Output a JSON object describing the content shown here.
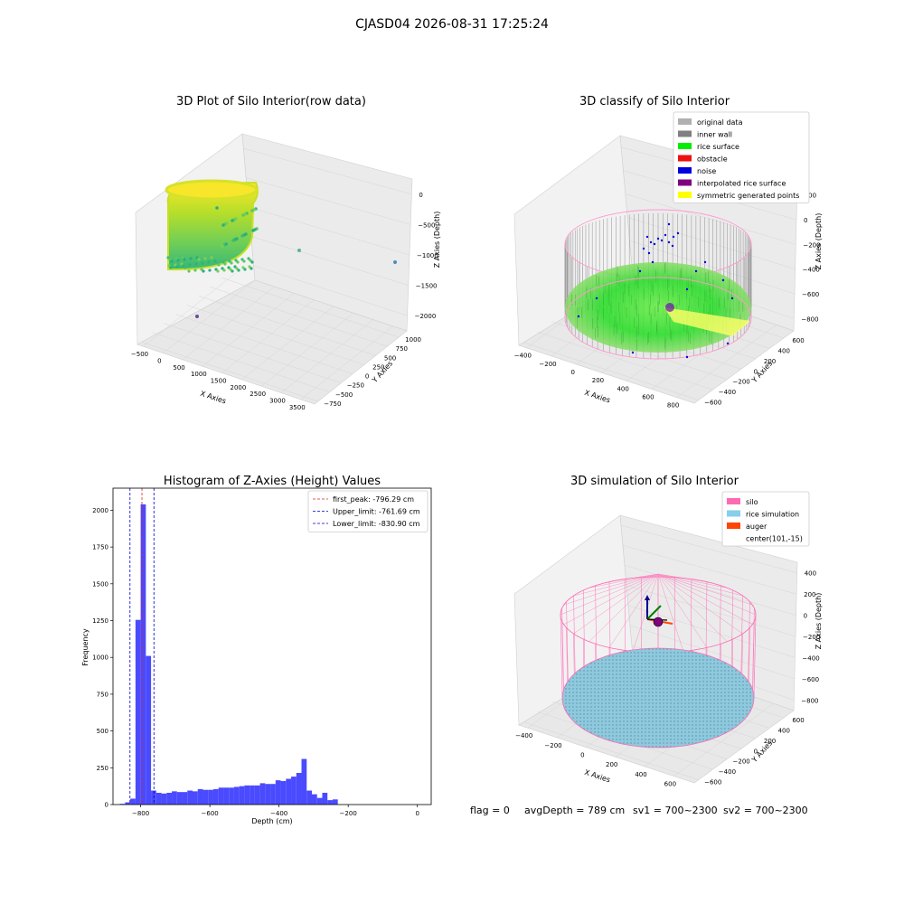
{
  "figure": {
    "suptitle": "CJASD04 2026-08-31 17:25:24",
    "footer": {
      "flag": "flag = 0",
      "avg": "avgDepth = 789 cm",
      "sv1": "sv1 = 700~2300",
      "sv2": "sv2 = 700~2300"
    }
  },
  "chart_data": [
    {
      "type": "scatter",
      "title": "3D Plot of Silo Interior(row data)",
      "xlabel": "X Axies",
      "ylabel": "Y Axies",
      "zlabel": "Z Axies (Depth)",
      "x_ticks": [
        "−500",
        "0",
        "500",
        "1000",
        "1500",
        "2000",
        "2500",
        "3000",
        "3500"
      ],
      "y_ticks": [
        "−750",
        "−500",
        "−250",
        "0",
        "250",
        "500",
        "750",
        "1000"
      ],
      "z_ticks": [
        "0",
        "−500",
        "−1000",
        "−1500",
        "−2000"
      ],
      "colormap": "viridis",
      "outliers": [
        {
          "x": 1550,
          "y": 380,
          "z": -1050
        },
        {
          "x": 3300,
          "y": 880,
          "z": -1350
        },
        {
          "x": 120,
          "y": -620,
          "z": -1900
        }
      ]
    },
    {
      "type": "scatter",
      "title": "3D classify of Silo Interior",
      "xlabel": "X Axies",
      "ylabel": "Y Axies",
      "zlabel": "Z Axies (Depth)",
      "x_ticks": [
        "−400",
        "−200",
        "0",
        "200",
        "400",
        "600",
        "800"
      ],
      "y_ticks": [
        "−600",
        "−400",
        "−200",
        "0",
        "200",
        "400",
        "600"
      ],
      "z_ticks": [
        "200",
        "0",
        "−200",
        "−400",
        "−600",
        "−800"
      ],
      "legend_position": "top-right",
      "legend": [
        {
          "label": "original data",
          "color": "#b0b0b0"
        },
        {
          "label": "inner wall",
          "color": "#808080"
        },
        {
          "label": "rice surface",
          "color": "#00ee00"
        },
        {
          "label": "obstacle",
          "color": "#ee1111"
        },
        {
          "label": "noise",
          "color": "#0000dd"
        },
        {
          "label": "interpolated rice surface",
          "color": "#800080"
        },
        {
          "label": "symmetric generated points",
          "color": "#ffff00"
        }
      ]
    },
    {
      "type": "bar",
      "title": "Histogram of Z-Axies (Height) Values",
      "xlabel": "Depth (cm)",
      "ylabel": "Frequency",
      "xlim": [
        -880,
        40
      ],
      "ylim": [
        0,
        2150
      ],
      "x_ticks": [
        -800,
        -600,
        -400,
        -200,
        0
      ],
      "x_tick_labels": [
        "−800",
        "−600",
        "−400",
        "−200",
        "0"
      ],
      "y_ticks": [
        0,
        250,
        500,
        750,
        1000,
        1250,
        1500,
        1750,
        2000
      ],
      "bar_color": "#4a4aff",
      "bin_start": -860,
      "bin_width": 15,
      "values": [
        5,
        15,
        40,
        1255,
        2040,
        1010,
        95,
        80,
        75,
        80,
        90,
        85,
        85,
        95,
        90,
        105,
        100,
        100,
        105,
        115,
        115,
        115,
        120,
        125,
        130,
        130,
        130,
        145,
        140,
        140,
        165,
        160,
        175,
        190,
        215,
        310,
        95,
        70,
        45,
        80,
        30,
        35
      ],
      "legend_position": "top-right",
      "lines": [
        {
          "label": "first_peak: -796.29 cm",
          "x": -796.29,
          "color": "#d62728"
        },
        {
          "label": "Upper_limit: -761.69 cm",
          "x": -761.69,
          "color": "#0000cc"
        },
        {
          "label": "Lower_limit: -830.90 cm",
          "x": -830.9,
          "color": "#0000cc"
        }
      ]
    },
    {
      "type": "scatter",
      "title": "3D simulation of Silo Interior",
      "xlabel": "X Axies",
      "ylabel": "Y Axies",
      "zlabel": "Z Axies (Depth)",
      "x_ticks": [
        "−400",
        "−200",
        "0",
        "200",
        "400",
        "600"
      ],
      "y_ticks": [
        "−600",
        "−400",
        "−200",
        "0",
        "200",
        "400",
        "600"
      ],
      "z_ticks": [
        "400",
        "200",
        "0",
        "−200",
        "−400",
        "−600",
        "−800"
      ],
      "legend_position": "top-right",
      "legend": [
        {
          "label": "silo",
          "color": "#ff69b4"
        },
        {
          "label": "rice simulation",
          "color": "#87ceeb"
        },
        {
          "label": "auger",
          "color": "#ff4500"
        },
        {
          "label": "center(101,-15)",
          "color": ""
        }
      ],
      "center": {
        "x": 101,
        "y": -15
      }
    }
  ]
}
